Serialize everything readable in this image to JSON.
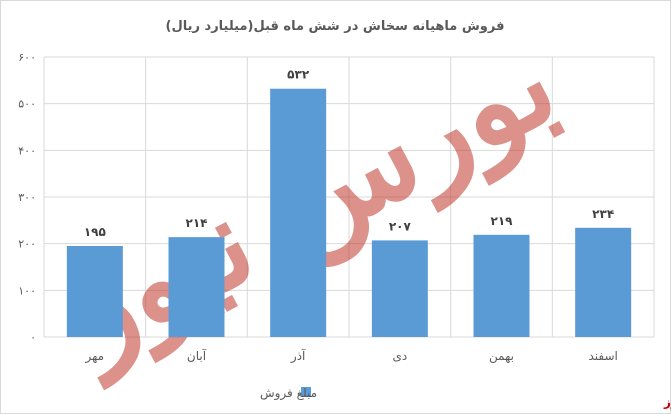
{
  "chart_data": {
    "type": "bar",
    "title": "فروش ماهیانه سخاش در شش ماه قبل(میلیارد ریال)",
    "categories": [
      "مهر",
      "آبان",
      "آذر",
      "دی",
      "بهمن",
      "اسفند"
    ],
    "series": [
      {
        "name": "مبلغ فروش",
        "values": [
          195,
          214,
          532,
          207,
          219,
          234
        ],
        "color": "#5b9bd5"
      }
    ],
    "value_labels": [
      "۱۹۵",
      "۲۱۴",
      "۵۳۲",
      "۲۰۷",
      "۲۱۹",
      "۲۳۴"
    ],
    "yticks": [
      "۰",
      "۱۰۰",
      "۲۰۰",
      "۳۰۰",
      "۴۰۰",
      "۵۰۰",
      "۶۰۰"
    ],
    "ylim": [
      0,
      600
    ],
    "grid": true,
    "legend_position": "bottom"
  },
  "watermark": {
    "text": "بورس نیوز",
    "color": "#c0392b"
  },
  "brand": {
    "text": "بورس نیوز",
    "color": "#c00000"
  }
}
